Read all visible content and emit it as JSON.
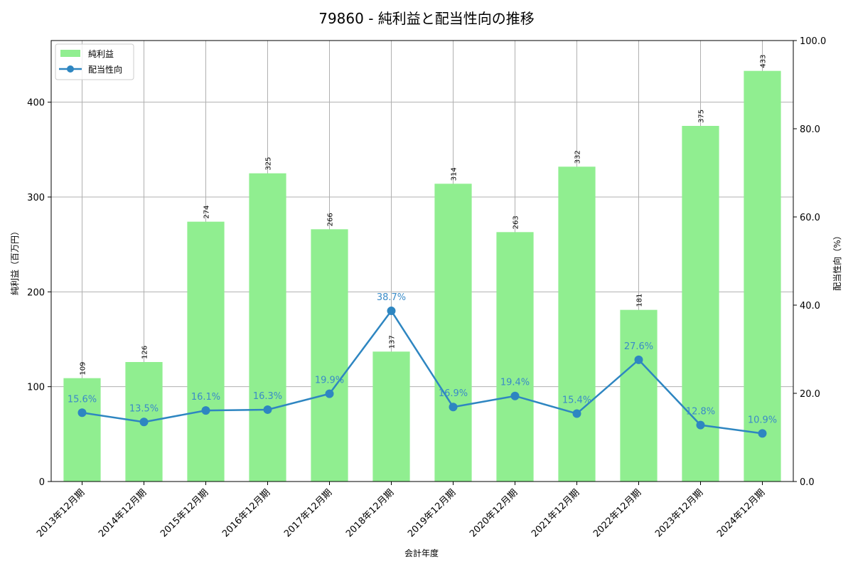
{
  "chart_data": {
    "type": "bar+line",
    "title": "79860 - 純利益と配当性向の推移",
    "xlabel": "会計年度",
    "ylabel_left": "純利益（百万円）",
    "ylabel_right": "配当性向（%）",
    "categories": [
      "2013年12月期",
      "2014年12月期",
      "2015年12月期",
      "2016年12月期",
      "2017年12月期",
      "2018年12月期",
      "2019年12月期",
      "2020年12月期",
      "2021年12月期",
      "2022年12月期",
      "2023年12月期",
      "2024年12月期"
    ],
    "series": [
      {
        "name": "純利益",
        "type": "bar",
        "axis": "left",
        "color": "#90ee90",
        "values": [
          109,
          126,
          274,
          325,
          266,
          137,
          314,
          263,
          332,
          181,
          375,
          433
        ]
      },
      {
        "name": "配当性向",
        "type": "line",
        "axis": "right",
        "color": "#2e86c1",
        "values": [
          15.6,
          13.5,
          16.1,
          16.3,
          19.9,
          38.7,
          16.9,
          19.4,
          15.4,
          27.6,
          12.8,
          10.9
        ]
      }
    ],
    "ylim_left": [
      0,
      465
    ],
    "yticks_left": [
      0,
      100,
      200,
      300,
      400
    ],
    "ylim_right": [
      0,
      100
    ],
    "yticks_right": [
      "0.0",
      "20.0",
      "40.0",
      "60.0",
      "80.0",
      "100.0"
    ],
    "grid": true,
    "legend_position": "upper left"
  }
}
